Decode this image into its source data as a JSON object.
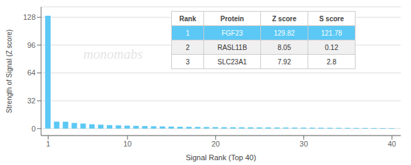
{
  "chart_data": {
    "type": "bar",
    "title": "",
    "xlabel": "Signal Rank (Top 40)",
    "ylabel": "Strength of Signal (Z score)",
    "x": [
      1,
      2,
      3,
      4,
      5,
      6,
      7,
      8,
      9,
      10,
      11,
      12,
      13,
      14,
      15,
      16,
      17,
      18,
      19,
      20,
      21,
      22,
      23,
      24,
      25,
      26,
      27,
      28,
      29,
      30,
      31,
      32,
      33,
      34,
      35,
      36,
      37,
      38,
      39,
      40
    ],
    "values": [
      129.82,
      8.05,
      7.92,
      6.5,
      5.8,
      5.0,
      4.5,
      4.0,
      3.7,
      3.4,
      3.1,
      2.9,
      2.7,
      2.5,
      2.3,
      2.1,
      2.0,
      1.9,
      1.8,
      1.7,
      1.6,
      1.5,
      1.45,
      1.4,
      1.35,
      1.3,
      1.25,
      1.2,
      1.15,
      1.1,
      1.05,
      1.0,
      0.95,
      0.9,
      0.85,
      0.8,
      0.75,
      0.7,
      0.65,
      0.6
    ],
    "color": "#5bc8f5",
    "xlim": [
      0.2,
      41
    ],
    "ylim": [
      -8,
      140
    ],
    "xticks": [
      1,
      10,
      20,
      30,
      40
    ],
    "yticks": [
      0,
      32,
      64,
      96,
      128
    ],
    "grid": true,
    "annotations": [
      "monomabs"
    ],
    "table": {
      "columns": [
        "Rank",
        "Protein",
        "Z score",
        "S score"
      ],
      "rows": [
        [
          "1",
          "FGF23",
          "129.82",
          "121.78"
        ],
        [
          "2",
          "RASL11B",
          "8.05",
          "0.12"
        ],
        [
          "3",
          "SLC23A1",
          "7.92",
          "2.8"
        ]
      ],
      "color": "#5bc8f5"
    }
  }
}
